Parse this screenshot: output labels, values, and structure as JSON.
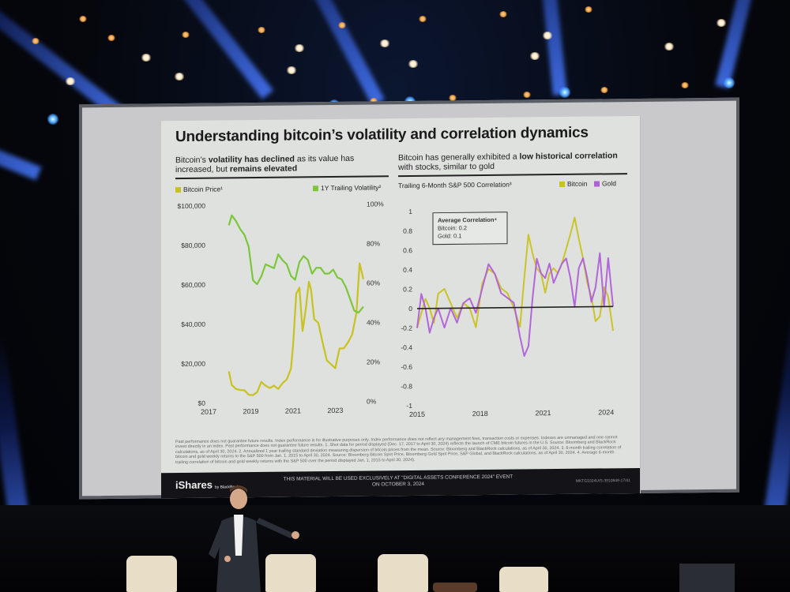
{
  "slide": {
    "title": "Understanding bitcoin’s volatility and correlation dynamics",
    "left": {
      "subtitle_pre": "Bitcoin’s ",
      "subtitle_b1": "volatility has declined",
      "subtitle_mid": " as its value has increased, but ",
      "subtitle_b2": "remains elevated",
      "legend_price": "Bitcoin Price¹",
      "legend_vol": "1Y Trailing Volatility²"
    },
    "right": {
      "subtitle_pre": "Bitcoin has generally exhibited a ",
      "subtitle_b1": "low historical correlation",
      "subtitle_post": " with stocks, similar to gold",
      "caption": "Trailing 6-Month S&P 500 Correlation³",
      "legend_bitcoin": "Bitcoin",
      "legend_gold": "Gold",
      "box_title": "Average Correlation⁴",
      "box_bitcoin": "Bitcoin: 0.2",
      "box_gold": "Gold: 0.1"
    },
    "disclaimer": "Past performance does not guarantee future results. Index performance is for illustrative purposes only. Index performance does not reflect any management fees, transaction costs or expenses. Indexes are unmanaged and one cannot invest directly in an index. Past performance does not guarantee future results. 1. Shot data for period displayed (Dec. 17, 2017 to April 30, 2024) reflects the launch of CME bitcoin futures in the U.S. Source: Bloomberg and BlackRock calculations, as of April 30, 2024. 2. Annualized 1 year trailing standard deviation measuring dispersion of bitcoin prices from the mean. Source: Bloomberg and BlackRock calculations, as of April 30, 2024. 3. 6-month trailing correlation of bitcoin and gold weekly returns to the S&P 500 from Jan. 1, 2015 to April 30, 2024. Source: Bloomberg Bitcoin Spot Price, Bloomberg Gold Spot Price, S&P Global, and BlackRock calculations, as of April 30, 2024. 4. Average 6-month trailing correlation of bitcoin and gold weekly returns with the S&P 500 over the period displayed Jan. 1, 2015 to April 30, 2024).",
    "footer": {
      "brand": "iShares",
      "brand_small": "by BlackRock",
      "note": "THIS MATERIAL WILL BE USED EXCLUSIVELY AT \"DIGITAL ASSETS CONFERENCE 2024\" EVENT ON OCTOBER 3, 2024",
      "code": "MKTG1024U/S-3910849-17/41"
    }
  },
  "colors": {
    "bitcoin": "#c9c21e",
    "volatility": "#7cc63a",
    "gold": "#b05fd8",
    "slide_bg": "#dfe1df",
    "beam": "#3f6dff"
  },
  "chart_data": [
    {
      "type": "line",
      "title": "",
      "x_ticks": [
        "2017",
        "2019",
        "2021",
        "2023"
      ],
      "y_left_ticks": [
        "$0",
        "$20,000",
        "$40,000",
        "$60,000",
        "$80,000",
        "$100,000"
      ],
      "y_right_ticks": [
        "0%",
        "20%",
        "40%",
        "60%",
        "80%",
        "100%"
      ],
      "ylim_left": [
        0,
        100000
      ],
      "ylim_right": [
        0,
        100
      ],
      "x_range": [
        2017,
        2024.33
      ],
      "legend": "top",
      "grid": false,
      "series": [
        {
          "name": "Bitcoin Price¹",
          "axis": "left",
          "x": [
            2017.96,
            2018.1,
            2018.3,
            2018.5,
            2018.7,
            2018.9,
            2019.1,
            2019.3,
            2019.5,
            2019.7,
            2019.9,
            2020.1,
            2020.3,
            2020.5,
            2020.7,
            2020.9,
            2021.0,
            2021.15,
            2021.3,
            2021.45,
            2021.6,
            2021.75,
            2021.85,
            2022.0,
            2022.2,
            2022.4,
            2022.6,
            2022.8,
            2023.0,
            2023.2,
            2023.4,
            2023.6,
            2023.8,
            2024.0,
            2024.15,
            2024.33
          ],
          "y": [
            16000,
            9000,
            7000,
            6500,
            6300,
            4000,
            3800,
            5300,
            10500,
            8500,
            7300,
            8500,
            6800,
            9700,
            11500,
            17000,
            29000,
            55000,
            58000,
            36000,
            47000,
            61000,
            57000,
            42000,
            40000,
            30000,
            21000,
            19000,
            17000,
            27000,
            27000,
            30000,
            34000,
            45000,
            70000,
            62000
          ]
        },
        {
          "name": "1Y Trailing Volatility²",
          "axis": "right",
          "x": [
            2017.96,
            2018.1,
            2018.3,
            2018.5,
            2018.7,
            2018.9,
            2019.1,
            2019.3,
            2019.5,
            2019.7,
            2019.9,
            2020.1,
            2020.3,
            2020.5,
            2020.7,
            2020.9,
            2021.1,
            2021.3,
            2021.5,
            2021.7,
            2021.9,
            2022.1,
            2022.3,
            2022.5,
            2022.7,
            2022.9,
            2023.1,
            2023.3,
            2023.5,
            2023.7,
            2023.9,
            2024.1,
            2024.33
          ],
          "y": [
            90,
            95,
            92,
            88,
            85,
            79,
            62,
            60,
            64,
            70,
            69,
            68,
            75,
            72,
            70,
            64,
            62,
            71,
            74,
            72,
            65,
            68,
            68,
            65,
            65,
            67,
            63,
            62,
            58,
            52,
            46,
            45,
            48
          ]
        }
      ]
    },
    {
      "type": "line",
      "title": "",
      "x_ticks": [
        "2015",
        "2018",
        "2021",
        "2024"
      ],
      "y_ticks": [
        "-1",
        "-0.8",
        "-0.6",
        "-0.4",
        "-0.2",
        "0",
        "0.2",
        "0.4",
        "0.6",
        "0.8",
        "1"
      ],
      "ylim": [
        -1,
        1
      ],
      "x_range": [
        2015,
        2024.33
      ],
      "legend": "top-right",
      "grid": false,
      "series": [
        {
          "name": "Bitcoin",
          "x": [
            2015.0,
            2015.2,
            2015.4,
            2015.6,
            2015.8,
            2016.0,
            2016.3,
            2016.6,
            2016.9,
            2017.2,
            2017.5,
            2017.8,
            2018.1,
            2018.4,
            2018.7,
            2019.0,
            2019.3,
            2019.6,
            2019.9,
            2020.1,
            2020.3,
            2020.5,
            2020.7,
            2020.9,
            2021.1,
            2021.3,
            2021.5,
            2021.7,
            2021.9,
            2022.1,
            2022.3,
            2022.5,
            2022.7,
            2022.9,
            2023.1,
            2023.3,
            2023.5,
            2023.7,
            2023.9,
            2024.1,
            2024.33
          ],
          "y": [
            -0.2,
            -0.05,
            0.1,
            0.0,
            -0.15,
            0.15,
            0.2,
            0.05,
            -0.1,
            0.05,
            0.0,
            -0.2,
            0.25,
            0.4,
            0.35,
            0.2,
            0.15,
            0.0,
            -0.2,
            0.3,
            0.75,
            0.55,
            0.4,
            0.35,
            0.15,
            0.35,
            0.4,
            0.35,
            0.45,
            0.6,
            0.75,
            0.92,
            0.7,
            0.5,
            0.25,
            0.1,
            -0.15,
            -0.1,
            0.2,
            0.1,
            -0.25
          ]
        },
        {
          "name": "Gold",
          "x": [
            2015.0,
            2015.2,
            2015.4,
            2015.6,
            2015.8,
            2016.0,
            2016.3,
            2016.6,
            2016.9,
            2017.2,
            2017.5,
            2017.8,
            2018.1,
            2018.4,
            2018.7,
            2019.0,
            2019.3,
            2019.6,
            2019.9,
            2020.1,
            2020.3,
            2020.5,
            2020.7,
            2020.9,
            2021.1,
            2021.3,
            2021.5,
            2021.7,
            2021.9,
            2022.1,
            2022.3,
            2022.5,
            2022.7,
            2022.9,
            2023.1,
            2023.3,
            2023.5,
            2023.7,
            2023.9,
            2024.1,
            2024.33
          ],
          "y": [
            -0.2,
            0.15,
            0.0,
            -0.25,
            -0.1,
            0.0,
            -0.2,
            0.0,
            -0.15,
            0.05,
            0.1,
            -0.05,
            0.2,
            0.45,
            0.35,
            0.15,
            0.1,
            0.05,
            -0.3,
            -0.5,
            -0.4,
            0.1,
            0.5,
            0.35,
            0.3,
            0.45,
            0.25,
            0.35,
            0.45,
            0.5,
            0.3,
            0.0,
            0.4,
            0.5,
            0.3,
            0.05,
            0.2,
            0.55,
            0.0,
            0.5,
            0.0
          ]
        }
      ]
    }
  ]
}
